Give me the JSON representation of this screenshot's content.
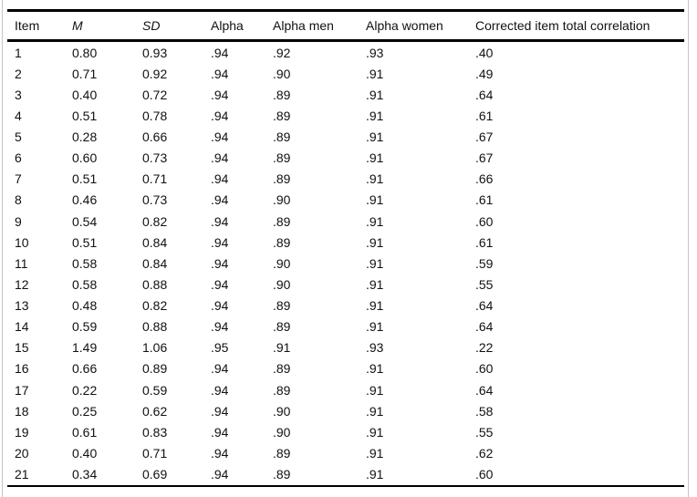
{
  "page": {
    "background": "#ffffff",
    "rule_color": "#000000",
    "edge_line_color": "#c6c6c6",
    "text_color": "#111111"
  },
  "table": {
    "columns": [
      {
        "key": "item",
        "label": "Item",
        "italic": false
      },
      {
        "key": "m",
        "label": "M",
        "italic": true
      },
      {
        "key": "sd",
        "label": "SD",
        "italic": true
      },
      {
        "key": "alpha",
        "label": "Alpha",
        "italic": false
      },
      {
        "key": "alpha_men",
        "label": "Alpha men",
        "italic": false
      },
      {
        "key": "alpha_women",
        "label": "Alpha women",
        "italic": false
      },
      {
        "key": "corrected_item_total_correlation",
        "label": "Corrected item total correlation",
        "italic": false
      }
    ],
    "rows": [
      [
        "1",
        "0.80",
        "0.93",
        ".94",
        ".92",
        ".93",
        ".40"
      ],
      [
        "2",
        "0.71",
        "0.92",
        ".94",
        ".90",
        ".91",
        ".49"
      ],
      [
        "3",
        "0.40",
        "0.72",
        ".94",
        ".89",
        ".91",
        ".64"
      ],
      [
        "4",
        "0.51",
        "0.78",
        ".94",
        ".89",
        ".91",
        ".61"
      ],
      [
        "5",
        "0.28",
        "0.66",
        ".94",
        ".89",
        ".91",
        ".67"
      ],
      [
        "6",
        "0.60",
        "0.73",
        ".94",
        ".89",
        ".91",
        ".67"
      ],
      [
        "7",
        "0.51",
        "0.71",
        ".94",
        ".89",
        ".91",
        ".66"
      ],
      [
        "8",
        "0.46",
        "0.73",
        ".94",
        ".90",
        ".91",
        ".61"
      ],
      [
        "9",
        "0.54",
        "0.82",
        ".94",
        ".89",
        ".91",
        ".60"
      ],
      [
        "10",
        "0.51",
        "0.84",
        ".94",
        ".89",
        ".91",
        ".61"
      ],
      [
        "11",
        "0.58",
        "0.84",
        ".94",
        ".90",
        ".91",
        ".59"
      ],
      [
        "12",
        "0.58",
        "0.88",
        ".94",
        ".90",
        ".91",
        ".55"
      ],
      [
        "13",
        "0.48",
        "0.82",
        ".94",
        ".89",
        ".91",
        ".64"
      ],
      [
        "14",
        "0.59",
        "0.88",
        ".94",
        ".89",
        ".91",
        ".64"
      ],
      [
        "15",
        "1.49",
        "1.06",
        ".95",
        ".91",
        ".93",
        ".22"
      ],
      [
        "16",
        "0.66",
        "0.89",
        ".94",
        ".89",
        ".91",
        ".60"
      ],
      [
        "17",
        "0.22",
        "0.59",
        ".94",
        ".89",
        ".91",
        ".64"
      ],
      [
        "18",
        "0.25",
        "0.62",
        ".94",
        ".90",
        ".91",
        ".58"
      ],
      [
        "19",
        "0.61",
        "0.83",
        ".94",
        ".90",
        ".91",
        ".55"
      ],
      [
        "20",
        "0.40",
        "0.71",
        ".94",
        ".89",
        ".91",
        ".62"
      ],
      [
        "21",
        "0.34",
        "0.69",
        ".94",
        ".89",
        ".91",
        ".60"
      ]
    ]
  }
}
